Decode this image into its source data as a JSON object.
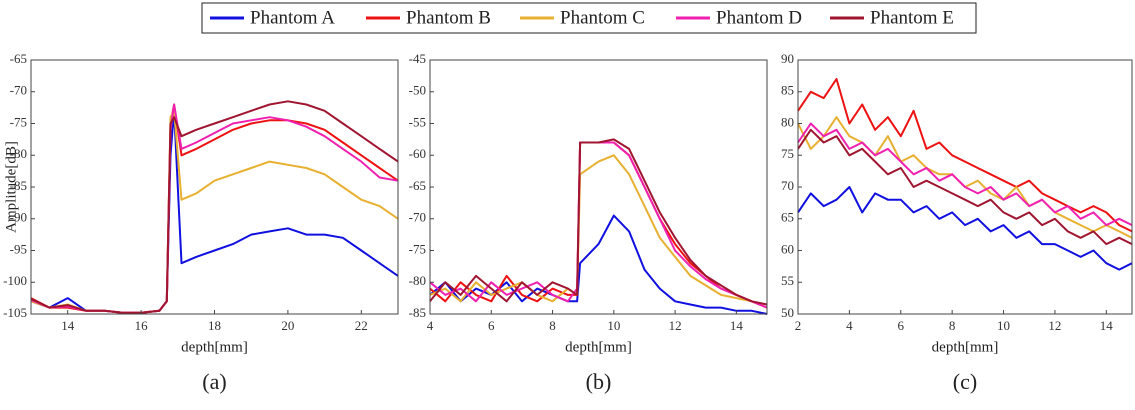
{
  "chart_data": [
    {
      "type": "line",
      "caption": "(a)",
      "x_label": "depth[mm]",
      "y_label": "Amplitude[dB]",
      "x": [
        13,
        13.5,
        14,
        14.5,
        15,
        15.5,
        16,
        16.5,
        16.7,
        16.8,
        16.9,
        17.1,
        17.5,
        18,
        18.5,
        19,
        19.5,
        20,
        20.5,
        21,
        21.5,
        22,
        22.5,
        23
      ],
      "xlim": [
        13,
        23
      ],
      "xticks": [
        14,
        16,
        18,
        20,
        22
      ],
      "ylim": [
        -105,
        -65
      ],
      "yticks": [
        -105,
        -100,
        -95,
        -90,
        -85,
        -80,
        -75,
        -70,
        -65
      ],
      "series": [
        {
          "name": "Phantom A",
          "color": "#1010e0",
          "values": [
            -103,
            -104,
            -102.5,
            -104.5,
            -104.5,
            -104.8,
            -104.8,
            -104.5,
            -103,
            -80,
            -73,
            -97,
            -96,
            -95,
            -94,
            -92.5,
            -92,
            -91.5,
            -92.5,
            -92.5,
            -93,
            -95,
            -97,
            -99
          ]
        },
        {
          "name": "Phantom B",
          "color": "#ee1111",
          "values": [
            -102.5,
            -104,
            -104,
            -104.5,
            -104.5,
            -104.8,
            -104.8,
            -104.5,
            -103,
            -75,
            -72,
            -80,
            -79,
            -77.5,
            -76,
            -75,
            -74.5,
            -74.5,
            -75,
            -76,
            -78,
            -80,
            -82,
            -84
          ]
        },
        {
          "name": "Phantom C",
          "color": "#e8b030",
          "values": [
            -103,
            -104,
            -103.5,
            -104.5,
            -104.5,
            -104.8,
            -104.8,
            -104.5,
            -103,
            -74,
            -73,
            -87,
            -86,
            -84,
            -83,
            -82,
            -81,
            -81.5,
            -82,
            -83,
            -85,
            -87,
            -88,
            -90
          ]
        },
        {
          "name": "Phantom D",
          "color": "#f020b0",
          "values": [
            -102.8,
            -104,
            -103.8,
            -104.5,
            -104.5,
            -104.8,
            -104.8,
            -104.5,
            -103,
            -76,
            -72,
            -79,
            -78,
            -76.5,
            -75,
            -74.5,
            -74,
            -74.5,
            -75.5,
            -77,
            -79,
            -81,
            -83.5,
            -84
          ]
        },
        {
          "name": "Phantom E",
          "color": "#a01530",
          "values": [
            -102.6,
            -104,
            -103.6,
            -104.5,
            -104.5,
            -104.8,
            -104.8,
            -104.5,
            -103,
            -75,
            -74,
            -77,
            -76,
            -75,
            -74,
            -73,
            -72,
            -71.5,
            -72,
            -73,
            -75,
            -77,
            -79,
            -81
          ]
        }
      ]
    },
    {
      "type": "line",
      "caption": "(b)",
      "x_label": "depth[mm]",
      "x": [
        4,
        4.5,
        5,
        5.5,
        6,
        6.5,
        7,
        7.5,
        8,
        8.5,
        8.8,
        8.9,
        9.5,
        10,
        10.5,
        11,
        11.5,
        12,
        12.5,
        13,
        13.5,
        14,
        14.5,
        15
      ],
      "xlim": [
        4,
        15
      ],
      "xticks": [
        4,
        6,
        8,
        10,
        12,
        14
      ],
      "ylim": [
        -85,
        -45
      ],
      "yticks": [
        -85,
        -80,
        -75,
        -70,
        -65,
        -60,
        -55,
        -50,
        -45
      ],
      "series": [
        {
          "color": "#1010e0",
          "values": [
            -82,
            -80,
            -83,
            -81,
            -82,
            -80,
            -83,
            -81,
            -82,
            -83,
            -83,
            -77,
            -74,
            -69.5,
            -72,
            -78,
            -81,
            -83,
            -83.5,
            -84,
            -84,
            -84.5,
            -84.5,
            -85
          ]
        },
        {
          "color": "#ee1111",
          "values": [
            -81,
            -83,
            -80,
            -82,
            -83,
            -79,
            -82,
            -83,
            -81,
            -82,
            -82,
            -58,
            -58,
            -58,
            -60,
            -65,
            -70,
            -74,
            -77,
            -79,
            -81,
            -82,
            -83,
            -84
          ]
        },
        {
          "color": "#e8b030",
          "values": [
            -82,
            -81,
            -83,
            -80,
            -82,
            -81,
            -80,
            -82,
            -83,
            -81,
            -82,
            -63,
            -61,
            -60,
            -63,
            -68,
            -73,
            -76,
            -79,
            -80.5,
            -82,
            -82.5,
            -83,
            -84
          ]
        },
        {
          "color": "#f020b0",
          "values": [
            -80,
            -82,
            -81,
            -83,
            -80,
            -82,
            -81,
            -80,
            -82,
            -83,
            -81,
            -58,
            -58,
            -58,
            -60,
            -65,
            -70,
            -75,
            -77.5,
            -79.5,
            -81,
            -82,
            -83,
            -84
          ]
        },
        {
          "color": "#a01530",
          "values": [
            -83,
            -80,
            -82,
            -79,
            -81,
            -83,
            -80,
            -82,
            -80,
            -81,
            -82,
            -58,
            -58,
            -57.5,
            -59,
            -64,
            -69,
            -73,
            -76.5,
            -79,
            -80.5,
            -82,
            -83,
            -83.5
          ]
        }
      ]
    },
    {
      "type": "line",
      "caption": "(c)",
      "x_label": "depth[mm]",
      "x": [
        2,
        2.5,
        3,
        3.5,
        4,
        4.5,
        5,
        5.5,
        6,
        6.5,
        7,
        7.5,
        8,
        8.5,
        9,
        9.5,
        10,
        10.5,
        11,
        11.5,
        12,
        12.5,
        13,
        13.5,
        14,
        14.5,
        15
      ],
      "xlim": [
        2,
        15
      ],
      "xticks": [
        2,
        4,
        6,
        8,
        10,
        12,
        14
      ],
      "ylim": [
        50,
        90
      ],
      "yticks": [
        50,
        55,
        60,
        65,
        70,
        75,
        80,
        85,
        90
      ],
      "series": [
        {
          "color": "#1010e0",
          "values": [
            66,
            69,
            67,
            68,
            70,
            66,
            69,
            68,
            68,
            66,
            67,
            65,
            66,
            64,
            65,
            63,
            64,
            62,
            63,
            61,
            61,
            60,
            59,
            60,
            58,
            57,
            58
          ]
        },
        {
          "color": "#ee1111",
          "values": [
            82,
            85,
            84,
            87,
            80,
            83,
            79,
            81,
            78,
            82,
            76,
            77,
            75,
            74,
            73,
            72,
            71,
            70,
            71,
            69,
            68,
            67,
            66,
            67,
            66,
            64,
            63
          ]
        },
        {
          "color": "#e8b030",
          "values": [
            80,
            76,
            78,
            81,
            78,
            77,
            75,
            78,
            74,
            75,
            73,
            72,
            72,
            70,
            71,
            69,
            68,
            70,
            67,
            68,
            66,
            65,
            64,
            63,
            64,
            63,
            62
          ]
        },
        {
          "color": "#f020b0",
          "values": [
            77,
            80,
            78,
            79,
            76,
            77,
            75,
            76,
            74,
            72,
            73,
            71,
            72,
            70,
            69,
            70,
            68,
            69,
            67,
            68,
            66,
            67,
            65,
            66,
            64,
            65,
            64
          ]
        },
        {
          "color": "#a01530",
          "values": [
            76,
            79,
            77,
            78,
            75,
            76,
            74,
            72,
            73,
            70,
            71,
            70,
            69,
            68,
            67,
            68,
            66,
            65,
            66,
            64,
            65,
            63,
            62,
            63,
            61,
            62,
            61
          ]
        }
      ]
    }
  ]
}
